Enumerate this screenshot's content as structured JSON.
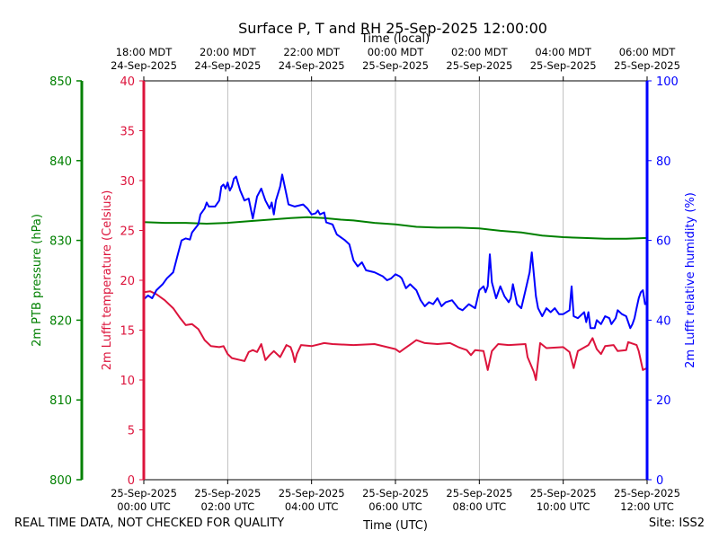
{
  "chart_data": {
    "type": "line",
    "title": "Surface P, T and RH 25-Sep-2025 12:00:00",
    "top_axis_label": "Time (local)",
    "xlabel": "Time (UTC)",
    "x_range_hours": [
      0,
      12
    ],
    "x_ticks_bottom": [
      {
        "hour": 0,
        "line1": "25-Sep-2025",
        "line2": "00:00 UTC"
      },
      {
        "hour": 2,
        "line1": "25-Sep-2025",
        "line2": "02:00 UTC"
      },
      {
        "hour": 4,
        "line1": "25-Sep-2025",
        "line2": "04:00 UTC"
      },
      {
        "hour": 6,
        "line1": "25-Sep-2025",
        "line2": "06:00 UTC"
      },
      {
        "hour": 8,
        "line1": "25-Sep-2025",
        "line2": "08:00 UTC"
      },
      {
        "hour": 10,
        "line1": "25-Sep-2025",
        "line2": "10:00 UTC"
      },
      {
        "hour": 12,
        "line1": "25-Sep-2025",
        "line2": "12:00 UTC"
      }
    ],
    "x_ticks_top": [
      {
        "hour": 0,
        "line1": "18:00 MDT",
        "line2": "24-Sep-2025"
      },
      {
        "hour": 2,
        "line1": "20:00 MDT",
        "line2": "24-Sep-2025"
      },
      {
        "hour": 4,
        "line1": "22:00 MDT",
        "line2": "24-Sep-2025"
      },
      {
        "hour": 6,
        "line1": "00:00 MDT",
        "line2": "25-Sep-2025"
      },
      {
        "hour": 8,
        "line1": "02:00 MDT",
        "line2": "25-Sep-2025"
      },
      {
        "hour": 10,
        "line1": "04:00 MDT",
        "line2": "25-Sep-2025"
      },
      {
        "hour": 12,
        "line1": "06:00 MDT",
        "line2": "25-Sep-2025"
      }
    ],
    "grid": "vertical",
    "axes": {
      "pressure": {
        "label": "2m PTB pressure (hPa)",
        "range": [
          800,
          850
        ],
        "ticks": [
          800,
          810,
          820,
          830,
          840,
          850
        ],
        "color": "#008000",
        "side": "far-left"
      },
      "temperature": {
        "label": "2m Lufft temperature (Celsius)",
        "range": [
          0,
          40
        ],
        "ticks": [
          0,
          5,
          10,
          15,
          20,
          25,
          30,
          35,
          40
        ],
        "color": "#dc143c",
        "side": "left"
      },
      "humidity": {
        "label": "2m Lufft relative humidity (%)",
        "range": [
          0,
          100
        ],
        "ticks": [
          0,
          20,
          40,
          60,
          80,
          100
        ],
        "color": "#0000ff",
        "side": "right"
      }
    },
    "series": [
      {
        "name": "2m PTB pressure (hPa)",
        "axis": "pressure",
        "color": "#008000",
        "points": [
          [
            0,
            832.3
          ],
          [
            0.5,
            832.2
          ],
          [
            1,
            832.2
          ],
          [
            1.5,
            832.1
          ],
          [
            2,
            832.2
          ],
          [
            2.5,
            832.4
          ],
          [
            3,
            832.6
          ],
          [
            3.5,
            832.8
          ],
          [
            3.9,
            832.9
          ],
          [
            4.3,
            832.8
          ],
          [
            4.7,
            832.6
          ],
          [
            5,
            832.5
          ],
          [
            5.5,
            832.2
          ],
          [
            6,
            832
          ],
          [
            6.5,
            831.7
          ],
          [
            7,
            831.6
          ],
          [
            7.5,
            831.6
          ],
          [
            8,
            831.5
          ],
          [
            8.5,
            831.2
          ],
          [
            9,
            831
          ],
          [
            9.5,
            830.6
          ],
          [
            10,
            830.4
          ],
          [
            10.5,
            830.3
          ],
          [
            11,
            830.2
          ],
          [
            11.5,
            830.2
          ],
          [
            12,
            830.3
          ]
        ]
      },
      {
        "name": "2m Lufft temperature (Celsius)",
        "axis": "temperature",
        "color": "#dc143c",
        "points": [
          [
            0,
            18.8
          ],
          [
            0.15,
            18.9
          ],
          [
            0.3,
            18.6
          ],
          [
            0.5,
            18.0
          ],
          [
            0.7,
            17.2
          ],
          [
            0.85,
            16.3
          ],
          [
            1.0,
            15.5
          ],
          [
            1.15,
            15.6
          ],
          [
            1.3,
            15.1
          ],
          [
            1.45,
            14.0
          ],
          [
            1.6,
            13.4
          ],
          [
            1.8,
            13.3
          ],
          [
            1.9,
            13.4
          ],
          [
            2.0,
            12.6
          ],
          [
            2.1,
            12.2
          ],
          [
            2.3,
            12.0
          ],
          [
            2.4,
            11.9
          ],
          [
            2.5,
            12.8
          ],
          [
            2.6,
            13.0
          ],
          [
            2.7,
            12.8
          ],
          [
            2.8,
            13.6
          ],
          [
            2.9,
            12.0
          ],
          [
            3.0,
            12.5
          ],
          [
            3.1,
            12.9
          ],
          [
            3.25,
            12.3
          ],
          [
            3.4,
            13.5
          ],
          [
            3.5,
            13.3
          ],
          [
            3.55,
            12.7
          ],
          [
            3.6,
            11.8
          ],
          [
            3.65,
            12.6
          ],
          [
            3.75,
            13.5
          ],
          [
            4.0,
            13.4
          ],
          [
            4.3,
            13.7
          ],
          [
            4.5,
            13.6
          ],
          [
            5.0,
            13.5
          ],
          [
            5.5,
            13.6
          ],
          [
            6.0,
            13.1
          ],
          [
            6.1,
            12.8
          ],
          [
            6.2,
            13.1
          ],
          [
            6.4,
            13.7
          ],
          [
            6.5,
            14.0
          ],
          [
            6.7,
            13.7
          ],
          [
            7.0,
            13.6
          ],
          [
            7.3,
            13.7
          ],
          [
            7.5,
            13.3
          ],
          [
            7.7,
            13.0
          ],
          [
            7.8,
            12.5
          ],
          [
            7.9,
            13.0
          ],
          [
            8.1,
            12.9
          ],
          [
            8.2,
            11.0
          ],
          [
            8.3,
            12.9
          ],
          [
            8.45,
            13.6
          ],
          [
            8.7,
            13.5
          ],
          [
            9.1,
            13.6
          ],
          [
            9.15,
            12.3
          ],
          [
            9.3,
            10.8
          ],
          [
            9.35,
            10.0
          ],
          [
            9.45,
            13.7
          ],
          [
            9.6,
            13.2
          ],
          [
            10.0,
            13.3
          ],
          [
            10.15,
            12.8
          ],
          [
            10.25,
            11.2
          ],
          [
            10.35,
            12.9
          ],
          [
            10.6,
            13.5
          ],
          [
            10.7,
            14.2
          ],
          [
            10.8,
            13.1
          ],
          [
            10.9,
            12.6
          ],
          [
            11.0,
            13.4
          ],
          [
            11.2,
            13.5
          ],
          [
            11.3,
            12.9
          ],
          [
            11.5,
            13.0
          ],
          [
            11.55,
            13.8
          ],
          [
            11.75,
            13.5
          ],
          [
            11.8,
            12.9
          ],
          [
            11.9,
            11.0
          ],
          [
            12,
            11.2
          ]
        ]
      },
      {
        "name": "2m Lufft relative humidity (%)",
        "axis": "humidity",
        "color": "#0000ff",
        "points": [
          [
            0,
            45.2
          ],
          [
            0.1,
            46.2
          ],
          [
            0.2,
            45.5
          ],
          [
            0.3,
            47.5
          ],
          [
            0.45,
            49.0
          ],
          [
            0.55,
            50.5
          ],
          [
            0.7,
            52.0
          ],
          [
            0.8,
            56.0
          ],
          [
            0.9,
            60.0
          ],
          [
            1.0,
            60.5
          ],
          [
            1.1,
            60.2
          ],
          [
            1.15,
            62.0
          ],
          [
            1.3,
            64.0
          ],
          [
            1.35,
            66.5
          ],
          [
            1.45,
            68.0
          ],
          [
            1.5,
            69.5
          ],
          [
            1.55,
            68.5
          ],
          [
            1.7,
            68.5
          ],
          [
            1.8,
            70.0
          ],
          [
            1.85,
            73.5
          ],
          [
            1.9,
            74.0
          ],
          [
            1.95,
            73.0
          ],
          [
            2.0,
            74.5
          ],
          [
            2.05,
            72.5
          ],
          [
            2.1,
            73.5
          ],
          [
            2.15,
            75.5
          ],
          [
            2.2,
            76.0
          ],
          [
            2.3,
            72.5
          ],
          [
            2.4,
            70.0
          ],
          [
            2.5,
            70.5
          ],
          [
            2.6,
            65.5
          ],
          [
            2.7,
            71.0
          ],
          [
            2.8,
            73.0
          ],
          [
            2.9,
            70.0
          ],
          [
            3.0,
            68.0
          ],
          [
            3.05,
            69.5
          ],
          [
            3.1,
            66.5
          ],
          [
            3.15,
            70.0
          ],
          [
            3.25,
            73.5
          ],
          [
            3.3,
            76.5
          ],
          [
            3.4,
            71.5
          ],
          [
            3.45,
            69.0
          ],
          [
            3.6,
            68.5
          ],
          [
            3.8,
            69.0
          ],
          [
            3.9,
            68.0
          ],
          [
            4.0,
            66.5
          ],
          [
            4.1,
            66.8
          ],
          [
            4.15,
            67.5
          ],
          [
            4.2,
            66.5
          ],
          [
            4.3,
            67.0
          ],
          [
            4.35,
            64.5
          ],
          [
            4.5,
            64.0
          ],
          [
            4.6,
            61.5
          ],
          [
            4.8,
            60.0
          ],
          [
            4.9,
            59.0
          ],
          [
            5.0,
            55.0
          ],
          [
            5.1,
            53.5
          ],
          [
            5.2,
            54.5
          ],
          [
            5.3,
            52.5
          ],
          [
            5.5,
            52.0
          ],
          [
            5.7,
            51.0
          ],
          [
            5.8,
            50.0
          ],
          [
            5.9,
            50.5
          ],
          [
            6.0,
            51.5
          ],
          [
            6.1,
            51.0
          ],
          [
            6.15,
            50.5
          ],
          [
            6.25,
            48.0
          ],
          [
            6.35,
            49.0
          ],
          [
            6.5,
            47.5
          ],
          [
            6.6,
            45.0
          ],
          [
            6.7,
            43.5
          ],
          [
            6.8,
            44.5
          ],
          [
            6.9,
            44.0
          ],
          [
            7.0,
            45.5
          ],
          [
            7.1,
            43.5
          ],
          [
            7.2,
            44.5
          ],
          [
            7.35,
            45.0
          ],
          [
            7.5,
            43.0
          ],
          [
            7.6,
            42.5
          ],
          [
            7.75,
            44.0
          ],
          [
            7.9,
            43.0
          ],
          [
            8.0,
            47.5
          ],
          [
            8.1,
            48.5
          ],
          [
            8.15,
            47.0
          ],
          [
            8.2,
            48.5
          ],
          [
            8.25,
            56.5
          ],
          [
            8.3,
            49.5
          ],
          [
            8.4,
            45.5
          ],
          [
            8.5,
            48.5
          ],
          [
            8.6,
            46.0
          ],
          [
            8.7,
            44.5
          ],
          [
            8.75,
            45.5
          ],
          [
            8.8,
            49.0
          ],
          [
            8.9,
            44.0
          ],
          [
            9.0,
            43.0
          ],
          [
            9.1,
            47.5
          ],
          [
            9.2,
            52.0
          ],
          [
            9.25,
            57.0
          ],
          [
            9.35,
            46.0
          ],
          [
            9.4,
            43.0
          ],
          [
            9.5,
            41.0
          ],
          [
            9.6,
            43.0
          ],
          [
            9.7,
            42.0
          ],
          [
            9.8,
            43.0
          ],
          [
            9.9,
            41.5
          ],
          [
            10.0,
            41.5
          ],
          [
            10.15,
            42.5
          ],
          [
            10.2,
            48.5
          ],
          [
            10.25,
            41.0
          ],
          [
            10.35,
            40.5
          ],
          [
            10.5,
            42.0
          ],
          [
            10.55,
            39.5
          ],
          [
            10.6,
            42.0
          ],
          [
            10.65,
            38.0
          ],
          [
            10.75,
            38.0
          ],
          [
            10.8,
            40.0
          ],
          [
            10.9,
            39.0
          ],
          [
            11.0,
            41.0
          ],
          [
            11.1,
            40.5
          ],
          [
            11.15,
            39.0
          ],
          [
            11.25,
            40.5
          ],
          [
            11.3,
            42.5
          ],
          [
            11.4,
            41.5
          ],
          [
            11.5,
            41.0
          ],
          [
            11.6,
            38.0
          ],
          [
            11.65,
            39.0
          ],
          [
            11.7,
            40.5
          ],
          [
            11.75,
            43.0
          ],
          [
            11.8,
            45.5
          ],
          [
            11.85,
            47.0
          ],
          [
            11.9,
            47.5
          ],
          [
            11.95,
            44.0
          ],
          [
            12.0,
            44.5
          ]
        ]
      }
    ]
  },
  "footer": {
    "left": "REAL TIME DATA, NOT CHECKED FOR QUALITY",
    "right": "Site: ISS2"
  }
}
